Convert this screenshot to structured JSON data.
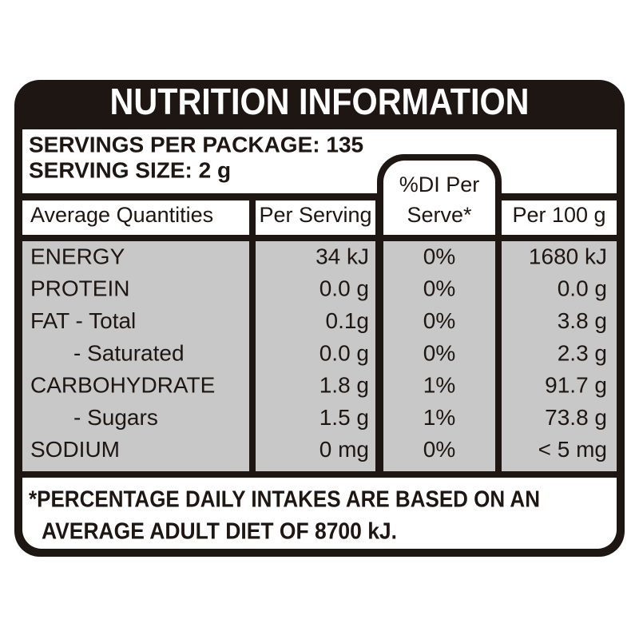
{
  "title": "NUTRITION INFORMATION",
  "servings": [
    "SERVINGS PER PACKAGE: 135",
    "SERVING SIZE: 2 g"
  ],
  "table": {
    "header": [
      "Average Quantities",
      "Per Serving",
      [
        "%DI Per",
        "Serve*"
      ],
      "Per 100 g"
    ],
    "rows": [
      [
        "ENERGY",
        "34 kJ",
        "0%",
        "1680 kJ"
      ],
      [
        "PROTEIN",
        "0.0 g",
        "0%",
        "0.0 g"
      ],
      [
        "FAT - Total",
        "0.1g",
        "0%",
        "3.8 g"
      ],
      [
        "- Saturated",
        "0.0 g",
        "0%",
        "2.3 g"
      ],
      [
        "CARBOHYDRATE",
        "1.8 g",
        "1%",
        "91.7 g"
      ],
      [
        "- Sugars",
        "1.5 g",
        "1%",
        "73.8 g"
      ],
      [
        "SODIUM",
        "0 mg",
        "0%",
        "< 5 mg"
      ]
    ]
  },
  "footnote": [
    "*PERCENTAGE DAILY INTAKES ARE BASED ON AN",
    "AVERAGE ADULT DIET OF 8700 kJ."
  ]
}
